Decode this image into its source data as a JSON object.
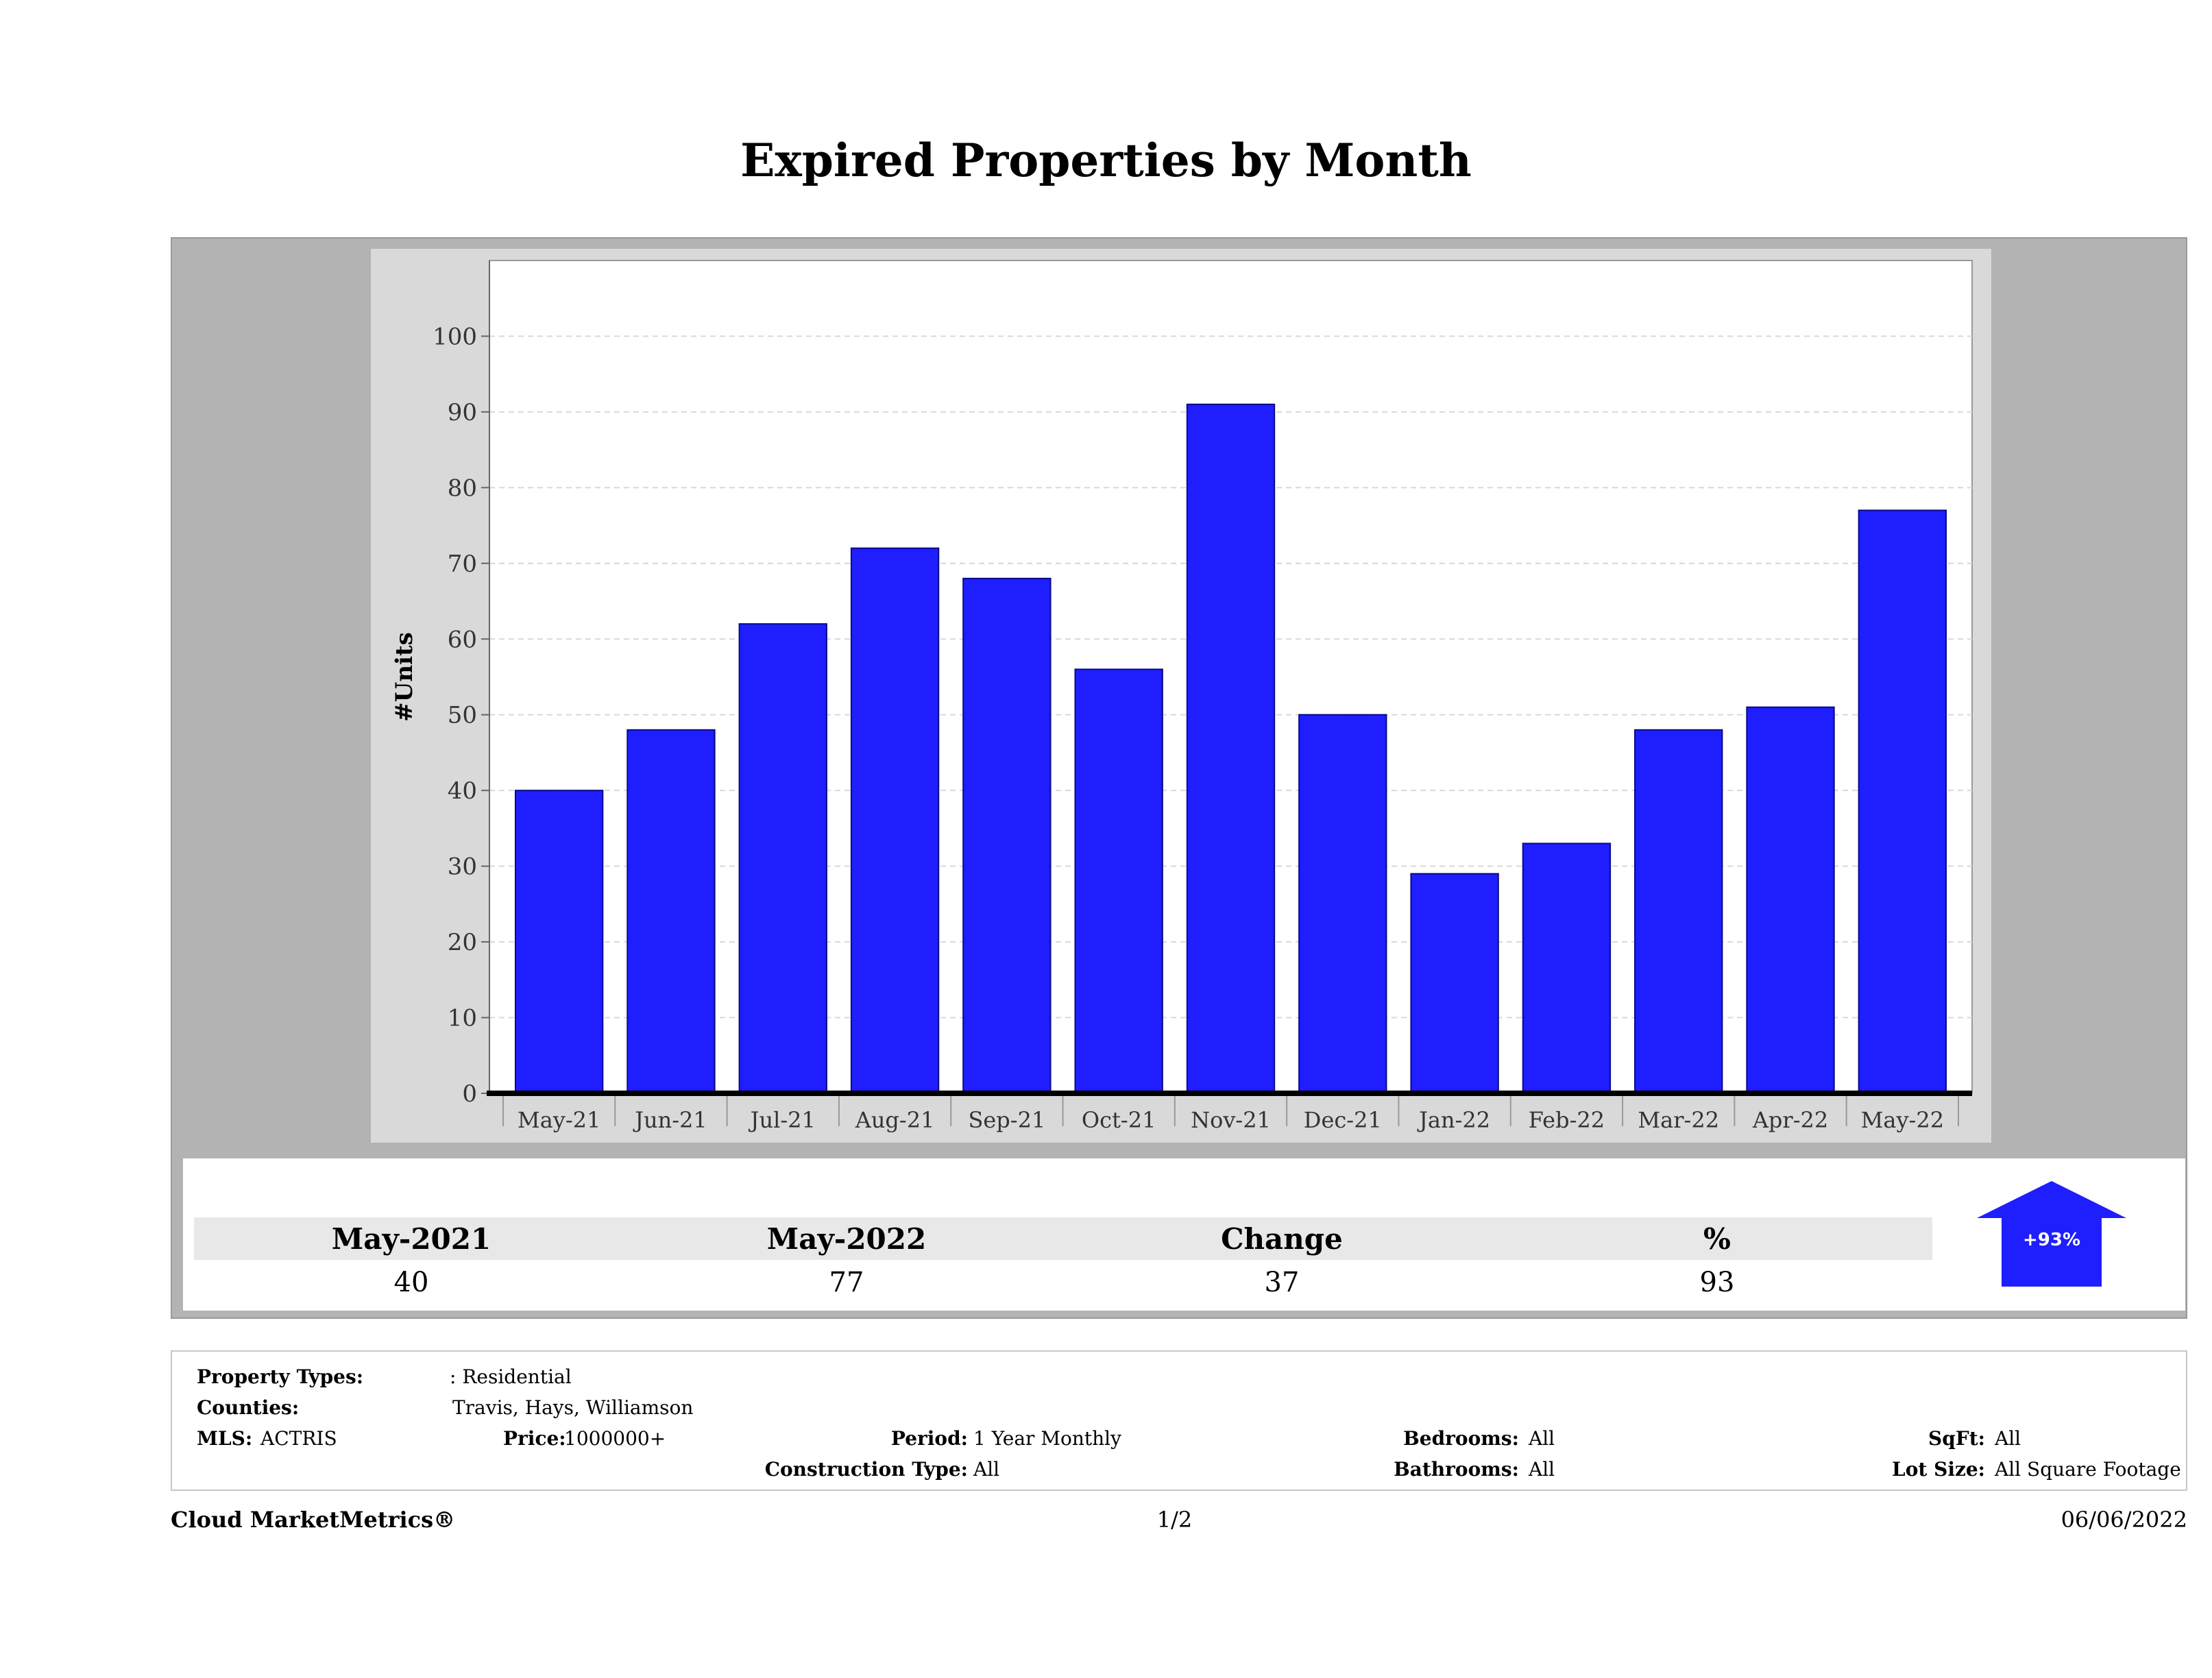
{
  "title": "Expired Properties by Month",
  "chart_data": {
    "type": "bar",
    "title": "Expired Properties by Month",
    "ylabel": "#Units",
    "xlabel": "",
    "categories": [
      "May-21",
      "Jun-21",
      "Jul-21",
      "Aug-21",
      "Sep-21",
      "Oct-21",
      "Nov-21",
      "Dec-21",
      "Jan-22",
      "Feb-22",
      "Mar-22",
      "Apr-22",
      "May-22"
    ],
    "values": [
      40,
      48,
      62,
      72,
      68,
      56,
      91,
      50,
      29,
      33,
      48,
      51,
      77
    ],
    "ylim": [
      0,
      110
    ],
    "yticks": [
      0,
      10,
      20,
      30,
      40,
      50,
      60,
      70,
      80,
      90,
      100
    ],
    "grid": true,
    "bar_color": "#1e1eff"
  },
  "summary": {
    "headers": [
      "May-2021",
      "May-2022",
      "Change",
      "%"
    ],
    "values": [
      "40",
      "77",
      "37",
      "93"
    ],
    "badge": "+93%",
    "badge_color": "#1e1eff"
  },
  "info": {
    "property_types_label": "Property Types:",
    "property_types_value": ": Residential",
    "counties_label": "Counties:",
    "counties_value": "Travis, Hays, Williamson",
    "mls_label": "MLS:",
    "mls_value": "ACTRIS",
    "price_label": "Price:",
    "price_value": "1000000+",
    "period_label": "Period:",
    "period_value": "1 Year Monthly",
    "construction_label": "Construction Type:",
    "construction_value": "All",
    "bedrooms_label": "Bedrooms:",
    "bedrooms_value": "All",
    "bathrooms_label": "Bathrooms:",
    "bathrooms_value": "All",
    "sqft_label": "SqFt:",
    "sqft_value": "All",
    "lotsize_label": "Lot Size:",
    "lotsize_value": "All Square Footage"
  },
  "footer": {
    "brand": "Cloud MarketMetrics®",
    "page": "1/2",
    "date": "06/06/2022"
  }
}
